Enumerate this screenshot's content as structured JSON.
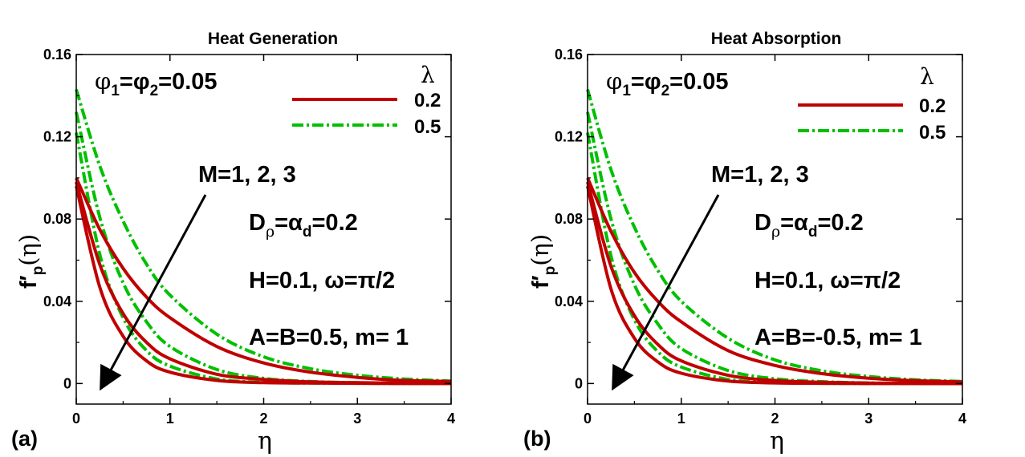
{
  "chart_data": [
    {
      "type": "line",
      "panel_label": "(a)",
      "title": "Heat Generation",
      "xlabel": "η",
      "ylabel": "f′p(η)",
      "ylabel_main": "f′",
      "ylabel_sub": "p",
      "ylabel_arg": "(η)",
      "xlim": [
        0,
        4
      ],
      "ylim": [
        -0.01,
        0.16
      ],
      "xticks": [
        0,
        1,
        2,
        3,
        4
      ],
      "xtick_labels": [
        "0",
        "1",
        "2",
        "3",
        "4"
      ],
      "yticks": [
        0,
        0.04,
        0.08,
        0.12,
        0.16
      ],
      "ytick_labels": [
        "0",
        "0.04",
        "0.08",
        "0.12",
        "0.16"
      ],
      "legend_title": "λ",
      "legend_placement": "top-right",
      "annotations": {
        "phi": {
          "main": "φ",
          "sub1": "1",
          "eq": "=φ",
          "sub2": "2",
          "rest": "=0.05"
        },
        "m_values": "M=1, 2, 3",
        "d_rho": {
          "a": "D",
          "sub1": "ρ",
          "b": "=α",
          "sub2": "d",
          "c": "=0.2"
        },
        "h_omega": "H=0.1, ω=π/2",
        "ab": "A=B=0.5, m= 1"
      },
      "series": [
        {
          "name": "0.2",
          "style": "solid",
          "color": "#c00000",
          "M": 1,
          "x": [
            0,
            0.25,
            0.5,
            0.75,
            1,
            1.5,
            2,
            2.5,
            3,
            3.5,
            4
          ],
          "y": [
            0.1,
            0.075,
            0.056,
            0.042,
            0.032,
            0.018,
            0.01,
            0.0055,
            0.003,
            0.0015,
            0.001
          ]
        },
        {
          "name": "0.2",
          "style": "solid",
          "color": "#c00000",
          "M": 2,
          "x": [
            0,
            0.25,
            0.5,
            0.75,
            1,
            1.5,
            2,
            2.5,
            3,
            3.5,
            4
          ],
          "y": [
            0.098,
            0.058,
            0.034,
            0.02,
            0.012,
            0.0045,
            0.002,
            0.0008,
            0.0004,
            0.0002,
            0.0001
          ]
        },
        {
          "name": "0.2",
          "style": "solid",
          "color": "#c00000",
          "M": 3,
          "x": [
            0,
            0.25,
            0.5,
            0.75,
            1,
            1.5,
            2,
            2.5,
            3,
            3.5,
            4
          ],
          "y": [
            0.096,
            0.047,
            0.023,
            0.011,
            0.0055,
            0.0015,
            0.0004,
            0.0002,
            0.0001,
            0,
            0
          ]
        },
        {
          "name": "0.5",
          "style": "dashdot",
          "color": "#00c000",
          "M": 1,
          "x": [
            0,
            0.25,
            0.5,
            0.75,
            1,
            1.5,
            2,
            2.5,
            3,
            3.5,
            4
          ],
          "y": [
            0.143,
            0.106,
            0.079,
            0.058,
            0.043,
            0.024,
            0.013,
            0.0072,
            0.004,
            0.0022,
            0.0012
          ]
        },
        {
          "name": "0.5",
          "style": "dashdot",
          "color": "#00c000",
          "M": 2,
          "x": [
            0,
            0.25,
            0.5,
            0.75,
            1,
            1.5,
            2,
            2.5,
            3,
            3.5,
            4
          ],
          "y": [
            0.132,
            0.081,
            0.049,
            0.03,
            0.018,
            0.0068,
            0.0025,
            0.001,
            0.0004,
            0.0002,
            0.0001
          ]
        },
        {
          "name": "0.5",
          "style": "dashdot",
          "color": "#00c000",
          "M": 3,
          "x": [
            0,
            0.25,
            0.5,
            0.75,
            1,
            1.5,
            2,
            2.5,
            3,
            3.5,
            4
          ],
          "y": [
            0.122,
            0.063,
            0.032,
            0.016,
            0.0085,
            0.0022,
            0.0006,
            0.0002,
            0.0001,
            0,
            0
          ]
        }
      ]
    },
    {
      "type": "line",
      "panel_label": "(b)",
      "title": "Heat Absorption",
      "xlabel": "η",
      "ylabel": "f′p(η)",
      "ylabel_main": "f′",
      "ylabel_sub": "p",
      "ylabel_arg": "(η)",
      "xlim": [
        0,
        4
      ],
      "ylim": [
        -0.01,
        0.16
      ],
      "xticks": [
        0,
        1,
        2,
        3,
        4
      ],
      "xtick_labels": [
        "0",
        "1",
        "2",
        "3",
        "4"
      ],
      "yticks": [
        0,
        0.04,
        0.08,
        0.12,
        0.16
      ],
      "ytick_labels": [
        "0",
        "0.04",
        "0.08",
        "0.12",
        "0.16"
      ],
      "legend_title": "λ",
      "legend_placement": "top-right",
      "annotations": {
        "phi": {
          "main": "φ",
          "sub1": "1",
          "eq": "=φ",
          "sub2": "2",
          "rest": "=0.05"
        },
        "m_values": "M=1, 2, 3",
        "d_rho": {
          "a": "D",
          "sub1": "ρ",
          "b": "=α",
          "sub2": "d",
          "c": "=0.2"
        },
        "h_omega": "H=0.1, ω=π/2",
        "ab": "A=B=-0.5, m= 1"
      },
      "series": [
        {
          "name": "0.2",
          "style": "solid",
          "color": "#c00000",
          "M": 1,
          "x": [
            0,
            0.25,
            0.5,
            0.75,
            1,
            1.5,
            2,
            2.5,
            3,
            3.5,
            4
          ],
          "y": [
            0.1,
            0.074,
            0.054,
            0.04,
            0.03,
            0.016,
            0.0088,
            0.0048,
            0.0026,
            0.0014,
            0.0008
          ]
        },
        {
          "name": "0.2",
          "style": "solid",
          "color": "#c00000",
          "M": 2,
          "x": [
            0,
            0.25,
            0.5,
            0.75,
            1,
            1.5,
            2,
            2.5,
            3,
            3.5,
            4
          ],
          "y": [
            0.098,
            0.057,
            0.033,
            0.019,
            0.011,
            0.004,
            0.0015,
            0.0006,
            0.0002,
            0.0001,
            0
          ]
        },
        {
          "name": "0.2",
          "style": "solid",
          "color": "#c00000",
          "M": 3,
          "x": [
            0,
            0.25,
            0.5,
            0.75,
            1,
            1.5,
            2,
            2.5,
            3,
            3.5,
            4
          ],
          "y": [
            0.096,
            0.046,
            0.022,
            0.0105,
            0.005,
            0.0012,
            0.0003,
            0.0001,
            0,
            0,
            0
          ]
        },
        {
          "name": "0.5",
          "style": "dashdot",
          "color": "#00c000",
          "M": 1,
          "x": [
            0,
            0.25,
            0.5,
            0.75,
            1,
            1.5,
            2,
            2.5,
            3,
            3.5,
            4
          ],
          "y": [
            0.143,
            0.104,
            0.076,
            0.055,
            0.04,
            0.022,
            0.0115,
            0.0062,
            0.0034,
            0.0018,
            0.001
          ]
        },
        {
          "name": "0.5",
          "style": "dashdot",
          "color": "#00c000",
          "M": 2,
          "x": [
            0,
            0.25,
            0.5,
            0.75,
            1,
            1.5,
            2,
            2.5,
            3,
            3.5,
            4
          ],
          "y": [
            0.132,
            0.08,
            0.048,
            0.029,
            0.017,
            0.0063,
            0.0023,
            0.0009,
            0.0003,
            0.0001,
            0
          ]
        },
        {
          "name": "0.5",
          "style": "dashdot",
          "color": "#00c000",
          "M": 3,
          "x": [
            0,
            0.25,
            0.5,
            0.75,
            1,
            1.5,
            2,
            2.5,
            3,
            3.5,
            4
          ],
          "y": [
            0.122,
            0.062,
            0.031,
            0.0155,
            0.008,
            0.002,
            0.0005,
            0.0001,
            0,
            0,
            0
          ]
        }
      ]
    }
  ]
}
